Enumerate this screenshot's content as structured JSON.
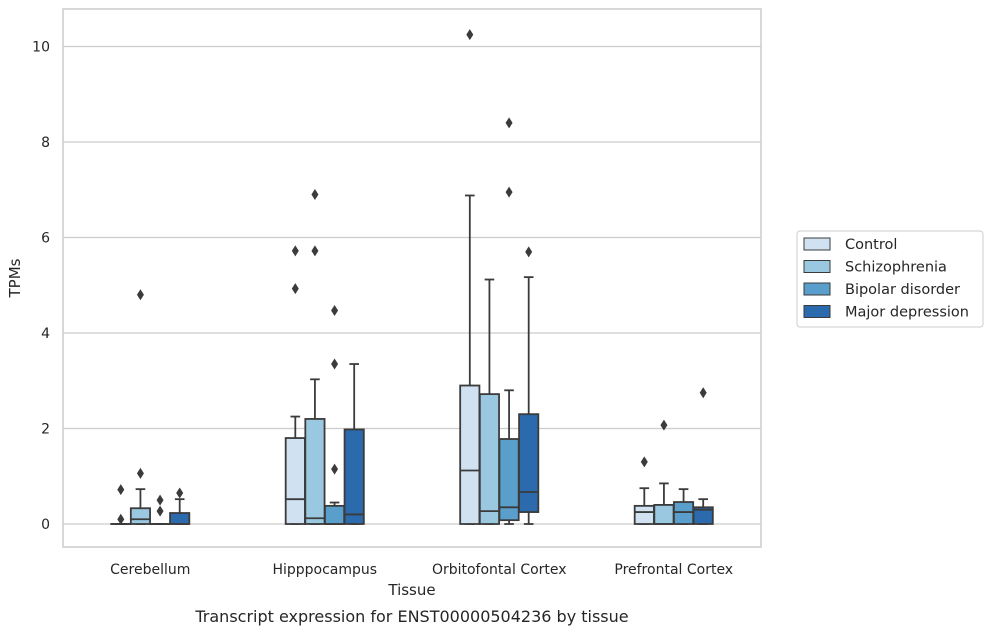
{
  "chart_data": {
    "type": "box",
    "xlabel": "Tissue",
    "ylabel": "TPMs",
    "caption": "Transcript expression for ENST00000504236 by tissue",
    "ylim": [
      -0.5,
      10.8
    ],
    "yticks": [
      0,
      2,
      4,
      6,
      8,
      10
    ],
    "grid": "horizontal",
    "legend_position": "right",
    "categories": [
      "Cerebellum",
      "Hipppocampus",
      "Orbitofontal Cortex",
      "Prefrontal Cortex"
    ],
    "series": [
      {
        "name": "Control",
        "color": "#d0e1f2",
        "boxes": [
          {
            "whislo": 0,
            "q1": 0,
            "med": 0,
            "q3": 0,
            "whishi": 0,
            "fliers": [
              0.72,
              0.1
            ]
          },
          {
            "whislo": 0,
            "q1": 0,
            "med": 0.52,
            "q3": 1.8,
            "whishi": 2.25,
            "fliers": [
              5.72,
              4.93
            ]
          },
          {
            "whislo": 0,
            "q1": 0,
            "med": 1.12,
            "q3": 2.9,
            "whishi": 6.88,
            "fliers": [
              10.25
            ]
          },
          {
            "whislo": 0,
            "q1": 0,
            "med": 0.25,
            "q3": 0.38,
            "whishi": 0.75,
            "fliers": [
              1.3
            ]
          }
        ]
      },
      {
        "name": "Schizophrenia",
        "color": "#9ac8e0",
        "boxes": [
          {
            "whislo": 0,
            "q1": 0,
            "med": 0.1,
            "q3": 0.33,
            "whishi": 0.73,
            "fliers": [
              4.8,
              1.06
            ]
          },
          {
            "whislo": 0,
            "q1": 0,
            "med": 0.12,
            "q3": 2.2,
            "whishi": 3.03,
            "fliers": [
              6.9,
              5.72
            ]
          },
          {
            "whislo": 0,
            "q1": 0,
            "med": 0.27,
            "q3": 2.72,
            "whishi": 5.12,
            "fliers": []
          },
          {
            "whislo": 0,
            "q1": 0,
            "med": 0,
            "q3": 0.4,
            "whishi": 0.85,
            "fliers": [
              2.07
            ]
          }
        ]
      },
      {
        "name": "Bipolar disorder",
        "color": "#5a9fcc",
        "boxes": [
          {
            "whislo": 0,
            "q1": 0,
            "med": 0,
            "q3": 0,
            "whishi": 0,
            "fliers": [
              0.5,
              0.27
            ]
          },
          {
            "whislo": 0,
            "q1": 0,
            "med": 0,
            "q3": 0.38,
            "whishi": 0.45,
            "fliers": [
              4.47,
              3.35,
              1.15
            ]
          },
          {
            "whislo": 0,
            "q1": 0.08,
            "med": 0.35,
            "q3": 1.78,
            "whishi": 2.8,
            "fliers": [
              8.4,
              6.95
            ]
          },
          {
            "whislo": 0,
            "q1": 0,
            "med": 0.25,
            "q3": 0.46,
            "whishi": 0.73,
            "fliers": []
          }
        ]
      },
      {
        "name": "Major depression",
        "color": "#2a6aad",
        "boxes": [
          {
            "whislo": 0,
            "q1": 0,
            "med": 0,
            "q3": 0.23,
            "whishi": 0.52,
            "fliers": [
              0.65
            ]
          },
          {
            "whislo": 0,
            "q1": 0,
            "med": 0.2,
            "q3": 1.98,
            "whishi": 3.35,
            "fliers": []
          },
          {
            "whislo": 0,
            "q1": 0.25,
            "med": 0.67,
            "q3": 2.3,
            "whishi": 5.17,
            "fliers": [
              5.7
            ]
          },
          {
            "whislo": 0,
            "q1": 0,
            "med": 0.3,
            "q3": 0.35,
            "whishi": 0.52,
            "fliers": [
              2.75
            ]
          }
        ]
      }
    ]
  }
}
